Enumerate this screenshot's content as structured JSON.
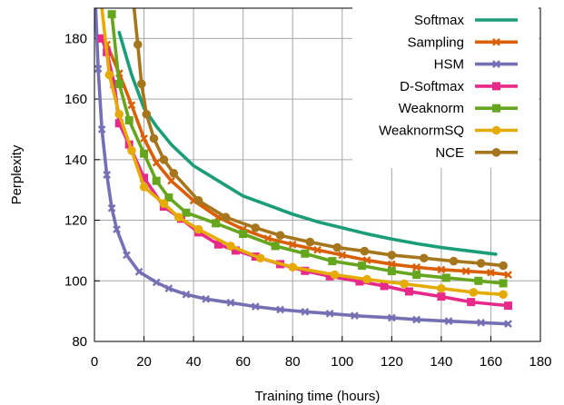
{
  "chart_data": {
    "type": "line",
    "xlabel": "Training time (hours)",
    "ylabel": "Perplexity",
    "xlim": [
      0,
      180
    ],
    "ylim": [
      80,
      190
    ],
    "xticks": [
      0,
      20,
      40,
      60,
      80,
      100,
      120,
      140,
      160,
      180
    ],
    "yticks": [
      80,
      100,
      120,
      140,
      160,
      180
    ],
    "grid": true,
    "legend_position": "top-right",
    "series": [
      {
        "name": "Softmax",
        "color": "#1b9e77",
        "marker": "none",
        "x": [
          10,
          15,
          20,
          25,
          31,
          40,
          50,
          60,
          70,
          80,
          90,
          100,
          110,
          120,
          130,
          140,
          150,
          162
        ],
        "y": [
          182,
          168,
          157,
          151,
          145,
          138,
          133,
          128,
          125,
          122,
          119.5,
          117.5,
          115.5,
          113.8,
          112.3,
          111,
          110,
          108.8
        ]
      },
      {
        "name": "Sampling",
        "color": "#d95f02",
        "marker": "x",
        "x": [
          5,
          10,
          15,
          20,
          25,
          31,
          40,
          50,
          60,
          70,
          80,
          90,
          100,
          110,
          120,
          130,
          140,
          150,
          160,
          167
        ],
        "y": [
          178,
          168.5,
          158,
          147,
          139,
          133,
          126.5,
          121,
          117,
          114,
          112,
          110.2,
          108.5,
          106.8,
          105.5,
          104.5,
          103.7,
          103.2,
          102.7,
          102
        ]
      },
      {
        "name": "HSM",
        "color": "#7570b3",
        "marker": "x",
        "x": [
          0.5,
          1.5,
          3,
          5,
          7,
          9,
          13,
          18,
          25,
          30,
          37,
          45,
          55,
          65,
          75,
          85,
          95,
          105,
          120,
          130,
          143,
          156,
          167
        ],
        "y": [
          190,
          170,
          150,
          135,
          124,
          117,
          108.5,
          103,
          99.5,
          97.5,
          95.5,
          94,
          92.8,
          91.5,
          90.5,
          89.8,
          89.2,
          88.5,
          87.8,
          87.2,
          86.7,
          86.2,
          85.8
        ]
      },
      {
        "name": "D-Softmax",
        "color": "#e7298a",
        "marker": "square",
        "x": [
          3,
          5,
          8,
          10,
          14,
          20,
          28,
          35,
          42,
          50,
          57,
          65,
          75,
          85,
          95,
          107,
          117,
          127,
          140,
          152,
          167
        ],
        "y": [
          180,
          175.5,
          165,
          152,
          145,
          134,
          124.5,
          120.5,
          116,
          112,
          110,
          108,
          105.5,
          103.3,
          101.5,
          99.8,
          98.3,
          96.5,
          94.8,
          93,
          91.8
        ]
      },
      {
        "name": "Weaknorm",
        "color": "#66a61e",
        "marker": "square",
        "x": [
          7,
          10,
          14,
          20,
          25,
          30,
          37,
          49,
          60,
          73,
          85,
          96,
          108,
          120,
          130,
          142,
          155,
          165
        ],
        "y": [
          188,
          165,
          153,
          142,
          133,
          127.5,
          122.5,
          119,
          115.5,
          111.5,
          109,
          106.5,
          105,
          103.2,
          102,
          101,
          100,
          99.2
        ]
      },
      {
        "name": "WeaknormSQ",
        "color": "#e6ab02",
        "marker": "circle",
        "x": [
          3,
          6,
          10,
          15,
          20,
          28,
          34,
          42,
          55,
          67,
          80,
          97,
          110,
          125,
          140,
          153,
          165
        ],
        "y": [
          190,
          168,
          155,
          143,
          131,
          125.5,
          121,
          117,
          111.5,
          107.5,
          104.5,
          102,
          100.5,
          99,
          97.5,
          96.2,
          95.5
        ]
      },
      {
        "name": "NCE",
        "color": "#a6761d",
        "marker": "circle",
        "x": [
          16,
          17.5,
          19,
          21,
          24,
          28,
          32,
          42,
          53,
          65,
          75,
          87,
          98,
          109,
          120,
          133,
          145,
          156,
          165
        ],
        "y": [
          190,
          178,
          165,
          155,
          147,
          140,
          135.5,
          126.5,
          121,
          117.5,
          115,
          112.8,
          111,
          109.8,
          108.5,
          107.5,
          106.5,
          105.8,
          105
        ]
      }
    ]
  }
}
